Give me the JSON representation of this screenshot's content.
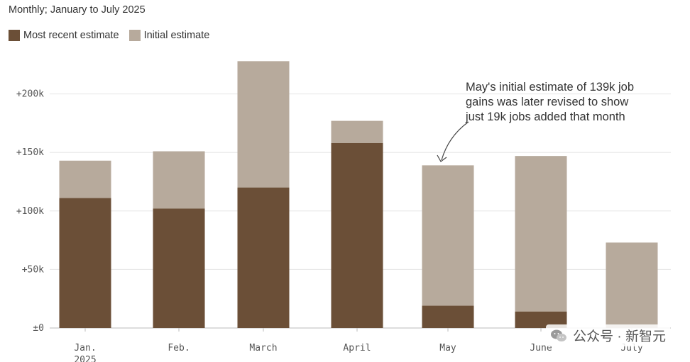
{
  "subtitle": "Monthly; January to July 2025",
  "legend": {
    "recent_label": "Most recent estimate",
    "initial_label": "Initial estimate"
  },
  "colors": {
    "recent": "#6b4f37",
    "initial": "#b7aa9c",
    "grid": "#e5e5e5",
    "axis": "#bbbbbb"
  },
  "chart_data": {
    "type": "bar",
    "categories": [
      "Jan.\n2025",
      "Feb.",
      "March",
      "April",
      "May",
      "June",
      "July"
    ],
    "series": [
      {
        "name": "Initial estimate",
        "values": [
          143,
          151,
          228,
          177,
          139,
          147,
          73
        ]
      },
      {
        "name": "Most recent estimate",
        "values": [
          111,
          102,
          120,
          158,
          19,
          14,
          null
        ]
      }
    ],
    "y_ticks": [
      "±0",
      "+50k",
      "+100k",
      "+150k",
      "+200k"
    ],
    "y_tick_values": [
      0,
      50,
      100,
      150,
      200
    ],
    "ylim": [
      0,
      240
    ],
    "grid": true,
    "annotation": {
      "lines": [
        "May's initial estimate of 139k job",
        "gains was later revised to show",
        "just 19k jobs added that month"
      ],
      "target_category": "May"
    }
  },
  "watermark": {
    "icon": "wechat-icon",
    "text": "公众号 · 新智元"
  }
}
